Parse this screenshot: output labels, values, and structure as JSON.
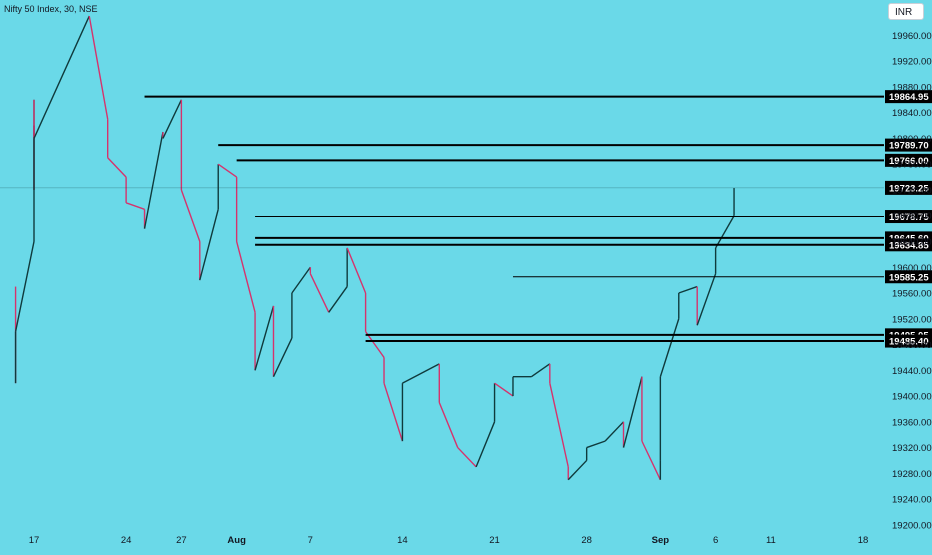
{
  "header": {
    "title": "Nifty 50 Index, 30, NSE",
    "currency": "INR"
  },
  "colors": {
    "background": "#6ad9e8",
    "up": "#0f3a3c",
    "down": "#d6336c",
    "line": "#000000",
    "text": "#131722"
  },
  "chart_data": {
    "type": "candlestick",
    "title": "Nifty 50 Index, 30, NSE",
    "currency": "INR",
    "ylim": [
      19192,
      20015
    ],
    "y_ticks": [
      19200.0,
      19240.0,
      19280.0,
      19320.0,
      19360.0,
      19400.0,
      19440.0,
      19480.0,
      19520.0,
      19560.0,
      19600.0,
      19640.0,
      19680.0,
      19720.0,
      19760.0,
      19800.0,
      19840.0,
      19880.0,
      19920.0,
      19960.0
    ],
    "x_ticks": [
      {
        "label": "17",
        "date": "2023-07-17"
      },
      {
        "label": "24",
        "date": "2023-07-24"
      },
      {
        "label": "27",
        "date": "2023-07-27"
      },
      {
        "label": "Aug",
        "date": "2023-08-01"
      },
      {
        "label": "7",
        "date": "2023-08-07"
      },
      {
        "label": "14",
        "date": "2023-08-14"
      },
      {
        "label": "21",
        "date": "2023-08-21"
      },
      {
        "label": "28",
        "date": "2023-08-28"
      },
      {
        "label": "Sep",
        "date": "2023-09-01"
      },
      {
        "label": "6",
        "date": "2023-09-06"
      },
      {
        "label": "11",
        "date": "2023-09-11"
      },
      {
        "label": "18",
        "date": "2023-09-18"
      }
    ],
    "price_levels": [
      {
        "value": 19864.95,
        "label": "19864.95",
        "from_date": "2023-07-25",
        "weight": "thick"
      },
      {
        "value": 19789.7,
        "label": "19789.70",
        "from_date": "2023-07-31",
        "weight": "thick"
      },
      {
        "value": 19766.0,
        "label": "19766.00",
        "from_date": "2023-08-01",
        "weight": "thick"
      },
      {
        "value": 19678.75,
        "label": "19678.75",
        "from_date": "2023-08-02",
        "weight": "thin"
      },
      {
        "value": 19645.6,
        "label": "19645.60",
        "from_date": "2023-08-02",
        "weight": "thick"
      },
      {
        "value": 19634.85,
        "label": "19634.85",
        "from_date": "2023-08-02",
        "weight": "thick"
      },
      {
        "value": 19585.25,
        "label": "19585.25",
        "from_date": "2023-08-22",
        "weight": "thin"
      },
      {
        "value": 19495.05,
        "label": "19495.05",
        "from_date": "2023-08-10",
        "weight": "thick"
      },
      {
        "value": 19485.4,
        "label": "19485.40",
        "from_date": "2023-08-10",
        "weight": "thick"
      }
    ],
    "last_price": {
      "value": 19723.25,
      "label": "19723.25"
    },
    "price_path": [
      [
        "2023-07-14",
        19570
      ],
      [
        "2023-07-14",
        19420
      ],
      [
        "2023-07-14",
        19500
      ],
      [
        "2023-07-17",
        19640
      ],
      [
        "2023-07-17",
        19820
      ],
      [
        "2023-07-17",
        19720
      ],
      [
        "2023-07-17",
        19860
      ],
      [
        "2023-07-17",
        19800
      ],
      [
        "2023-07-20",
        19990
      ],
      [
        "2023-07-21",
        19830
      ],
      [
        "2023-07-21",
        19770
      ],
      [
        "2023-07-24",
        19740
      ],
      [
        "2023-07-24",
        19700
      ],
      [
        "2023-07-25",
        19690
      ],
      [
        "2023-07-25",
        19660
      ],
      [
        "2023-07-26",
        19810
      ],
      [
        "2023-07-26",
        19800
      ],
      [
        "2023-07-27",
        19860
      ],
      [
        "2023-07-27",
        19720
      ],
      [
        "2023-07-28",
        19640
      ],
      [
        "2023-07-28",
        19580
      ],
      [
        "2023-07-31",
        19690
      ],
      [
        "2023-07-31",
        19760
      ],
      [
        "2023-08-01",
        19740
      ],
      [
        "2023-08-01",
        19640
      ],
      [
        "2023-08-02",
        19530
      ],
      [
        "2023-08-02",
        19440
      ],
      [
        "2023-08-03",
        19540
      ],
      [
        "2023-08-03",
        19430
      ],
      [
        "2023-08-04",
        19490
      ],
      [
        "2023-08-04",
        19560
      ],
      [
        "2023-08-07",
        19600
      ],
      [
        "2023-08-07",
        19590
      ],
      [
        "2023-08-08",
        19530
      ],
      [
        "2023-08-09",
        19570
      ],
      [
        "2023-08-09",
        19630
      ],
      [
        "2023-08-10",
        19560
      ],
      [
        "2023-08-10",
        19500
      ],
      [
        "2023-08-11",
        19460
      ],
      [
        "2023-08-11",
        19420
      ],
      [
        "2023-08-14",
        19330
      ],
      [
        "2023-08-14",
        19420
      ],
      [
        "2023-08-16",
        19450
      ],
      [
        "2023-08-16",
        19390
      ],
      [
        "2023-08-17",
        19320
      ],
      [
        "2023-08-18",
        19290
      ],
      [
        "2023-08-21",
        19360
      ],
      [
        "2023-08-21",
        19420
      ],
      [
        "2023-08-22",
        19400
      ],
      [
        "2023-08-22",
        19430
      ],
      [
        "2023-08-23",
        19430
      ],
      [
        "2023-08-24",
        19450
      ],
      [
        "2023-08-24",
        19420
      ],
      [
        "2023-08-25",
        19290
      ],
      [
        "2023-08-25",
        19270
      ],
      [
        "2023-08-28",
        19300
      ],
      [
        "2023-08-28",
        19320
      ],
      [
        "2023-08-29",
        19330
      ],
      [
        "2023-08-30",
        19360
      ],
      [
        "2023-08-30",
        19320
      ],
      [
        "2023-08-31",
        19430
      ],
      [
        "2023-08-31",
        19330
      ],
      [
        "2023-09-01",
        19270
      ],
      [
        "2023-09-01",
        19300
      ],
      [
        "2023-09-01",
        19430
      ],
      [
        "2023-09-04",
        19520
      ],
      [
        "2023-09-04",
        19560
      ],
      [
        "2023-09-05",
        19570
      ],
      [
        "2023-09-05",
        19560
      ],
      [
        "2023-09-05",
        19510
      ],
      [
        "2023-09-06",
        19590
      ],
      [
        "2023-09-06",
        19630
      ],
      [
        "2023-09-07",
        19680
      ],
      [
        "2023-09-07",
        19723
      ]
    ]
  }
}
